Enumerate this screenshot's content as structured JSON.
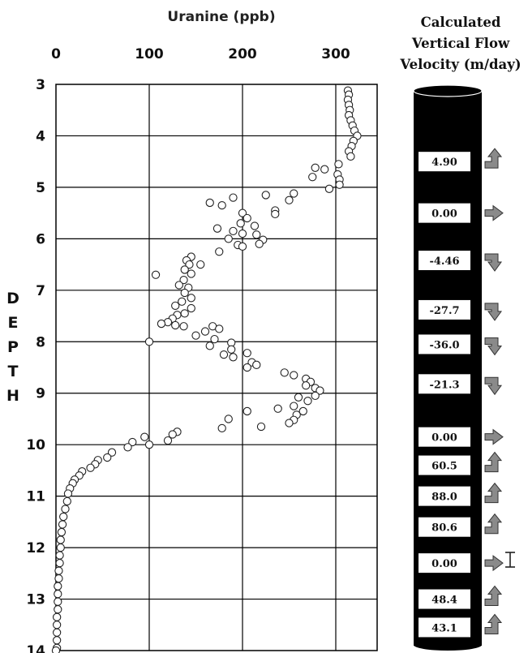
{
  "chart_data": {
    "type": "scatter",
    "title": "",
    "xlabel": "Uranine (ppb)",
    "ylabel": "DEPTH",
    "xlim": [
      0,
      350
    ],
    "ylim": [
      3,
      14
    ],
    "y_inverted": true,
    "grid": true,
    "x_ticks": [
      "0",
      "100",
      "200",
      "300"
    ],
    "y_ticks": [
      "3",
      "4",
      "5",
      "6",
      "7",
      "8",
      "9",
      "10",
      "11",
      "12",
      "13",
      "14"
    ],
    "marker": "open-circle",
    "points": [
      [
        313,
        3.12
      ],
      [
        314,
        3.2
      ],
      [
        313,
        3.3
      ],
      [
        314,
        3.4
      ],
      [
        315,
        3.5
      ],
      [
        314,
        3.6
      ],
      [
        316,
        3.7
      ],
      [
        318,
        3.8
      ],
      [
        320,
        3.9
      ],
      [
        323,
        4.0
      ],
      [
        319,
        4.1
      ],
      [
        317,
        4.2
      ],
      [
        314,
        4.3
      ],
      [
        316,
        4.4
      ],
      [
        303,
        4.55
      ],
      [
        278,
        4.62
      ],
      [
        288,
        4.65
      ],
      [
        275,
        4.8
      ],
      [
        302,
        4.75
      ],
      [
        304,
        4.85
      ],
      [
        304,
        4.95
      ],
      [
        293,
        5.03
      ],
      [
        255,
        5.12
      ],
      [
        225,
        5.15
      ],
      [
        190,
        5.2
      ],
      [
        250,
        5.25
      ],
      [
        165,
        5.3
      ],
      [
        178,
        5.35
      ],
      [
        235,
        5.45
      ],
      [
        235,
        5.52
      ],
      [
        200,
        5.5
      ],
      [
        205,
        5.6
      ],
      [
        198,
        5.7
      ],
      [
        173,
        5.8
      ],
      [
        213,
        5.75
      ],
      [
        190,
        5.85
      ],
      [
        200,
        5.9
      ],
      [
        215,
        5.92
      ],
      [
        185,
        6.0
      ],
      [
        222,
        6.02
      ],
      [
        218,
        6.1
      ],
      [
        195,
        6.12
      ],
      [
        200,
        6.15
      ],
      [
        175,
        6.25
      ],
      [
        145,
        6.35
      ],
      [
        140,
        6.42
      ],
      [
        155,
        6.5
      ],
      [
        143,
        6.5
      ],
      [
        138,
        6.6
      ],
      [
        145,
        6.68
      ],
      [
        107,
        6.7
      ],
      [
        137,
        6.8
      ],
      [
        132,
        6.9
      ],
      [
        142,
        6.95
      ],
      [
        138,
        7.05
      ],
      [
        145,
        7.15
      ],
      [
        135,
        7.22
      ],
      [
        128,
        7.3
      ],
      [
        145,
        7.35
      ],
      [
        138,
        7.45
      ],
      [
        130,
        7.48
      ],
      [
        125,
        7.55
      ],
      [
        120,
        7.62
      ],
      [
        113,
        7.65
      ],
      [
        128,
        7.68
      ],
      [
        137,
        7.7
      ],
      [
        168,
        7.7
      ],
      [
        175,
        7.75
      ],
      [
        160,
        7.8
      ],
      [
        150,
        7.88
      ],
      [
        170,
        7.95
      ],
      [
        100,
        8.0
      ],
      [
        188,
        8.02
      ],
      [
        165,
        8.08
      ],
      [
        188,
        8.15
      ],
      [
        205,
        8.22
      ],
      [
        180,
        8.25
      ],
      [
        190,
        8.3
      ],
      [
        210,
        8.4
      ],
      [
        215,
        8.45
      ],
      [
        205,
        8.5
      ],
      [
        245,
        8.6
      ],
      [
        255,
        8.65
      ],
      [
        268,
        8.72
      ],
      [
        273,
        8.78
      ],
      [
        268,
        8.85
      ],
      [
        278,
        8.9
      ],
      [
        283,
        8.95
      ],
      [
        278,
        9.05
      ],
      [
        260,
        9.08
      ],
      [
        270,
        9.15
      ],
      [
        255,
        9.25
      ],
      [
        238,
        9.3
      ],
      [
        265,
        9.35
      ],
      [
        205,
        9.35
      ],
      [
        258,
        9.42
      ],
      [
        185,
        9.5
      ],
      [
        255,
        9.52
      ],
      [
        250,
        9.58
      ],
      [
        220,
        9.65
      ],
      [
        178,
        9.68
      ],
      [
        130,
        9.75
      ],
      [
        125,
        9.8
      ],
      [
        95,
        9.85
      ],
      [
        120,
        9.92
      ],
      [
        82,
        9.95
      ],
      [
        100,
        10.0
      ],
      [
        77,
        10.05
      ],
      [
        60,
        10.15
      ],
      [
        55,
        10.25
      ],
      [
        45,
        10.3
      ],
      [
        42,
        10.38
      ],
      [
        37,
        10.45
      ],
      [
        28,
        10.52
      ],
      [
        25,
        10.6
      ],
      [
        20,
        10.68
      ],
      [
        18,
        10.75
      ],
      [
        15,
        10.85
      ],
      [
        13,
        10.95
      ],
      [
        12,
        11.1
      ],
      [
        10,
        11.25
      ],
      [
        8,
        11.4
      ],
      [
        7,
        11.55
      ],
      [
        6,
        11.7
      ],
      [
        5,
        11.85
      ],
      [
        5,
        12.0
      ],
      [
        4,
        12.15
      ],
      [
        4,
        12.3
      ],
      [
        3,
        12.45
      ],
      [
        3,
        12.6
      ],
      [
        2,
        12.75
      ],
      [
        2,
        12.9
      ],
      [
        2,
        13.05
      ],
      [
        2,
        13.2
      ],
      [
        1,
        13.35
      ],
      [
        1,
        13.5
      ],
      [
        1,
        13.65
      ],
      [
        1,
        13.8
      ],
      [
        1,
        13.95
      ],
      [
        0,
        14.0
      ]
    ]
  },
  "velocity_column": {
    "title_lines": [
      "Calculated",
      "Vertical Flow",
      "Velocity (m/day)"
    ],
    "values": [
      {
        "label": "4.90",
        "depth": 4.5,
        "arrow": "up"
      },
      {
        "label": "0.00",
        "depth": 5.5,
        "arrow": "right"
      },
      {
        "label": "-4.46",
        "depth": 6.42,
        "arrow": "down"
      },
      {
        "label": "-27.7",
        "depth": 7.38,
        "arrow": "down"
      },
      {
        "label": "-36.0",
        "depth": 8.05,
        "arrow": "down"
      },
      {
        "label": "-21.3",
        "depth": 8.82,
        "arrow": "down"
      },
      {
        "label": "0.00",
        "depth": 9.85,
        "arrow": "right"
      },
      {
        "label": "60.5",
        "depth": 10.4,
        "arrow": "up"
      },
      {
        "label": "88.0",
        "depth": 11.0,
        "arrow": "up"
      },
      {
        "label": "80.6",
        "depth": 11.6,
        "arrow": "up"
      },
      {
        "label": "0.00",
        "depth": 12.3,
        "arrow": "right"
      },
      {
        "label": "48.4",
        "depth": 13.0,
        "arrow": "up"
      },
      {
        "label": "43.1",
        "depth": 13.55,
        "arrow": "up"
      }
    ]
  }
}
